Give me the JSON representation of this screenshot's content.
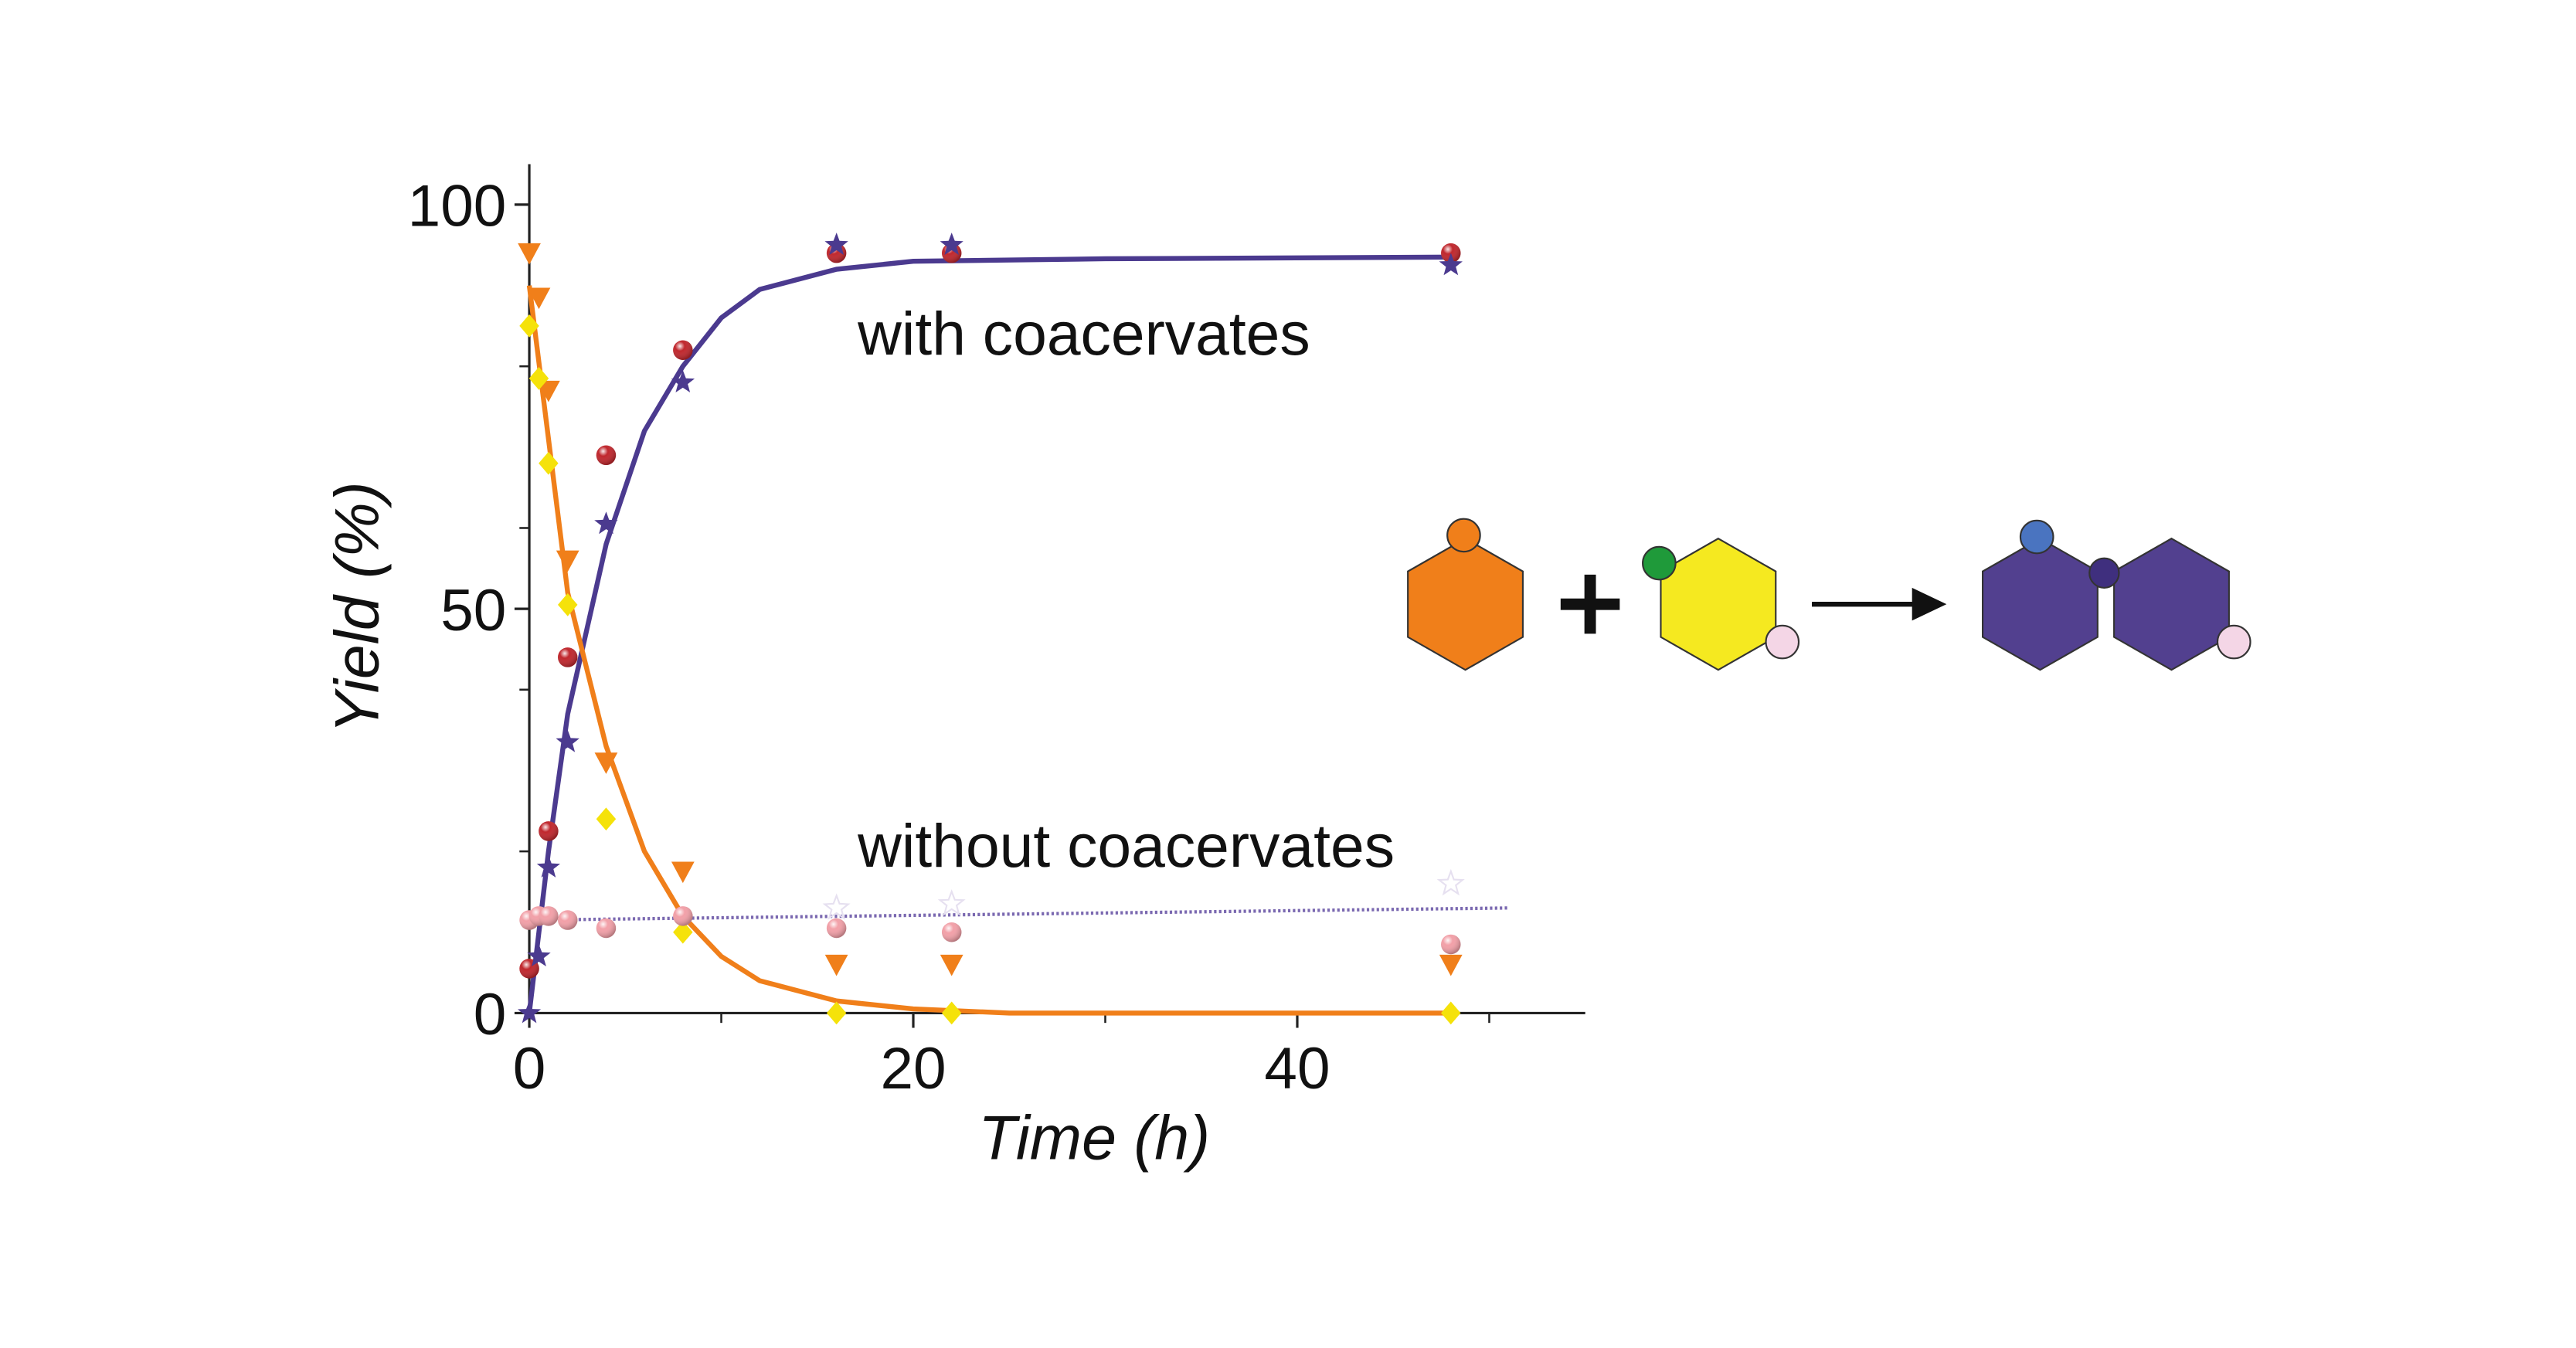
{
  "chart_data": {
    "type": "scatter",
    "xlabel": "Time (h)",
    "ylabel": "Yield (%)",
    "annotations": [
      "with coacervates",
      "without coacervates"
    ],
    "xlim": [
      0,
      55
    ],
    "ylim": [
      0,
      105
    ],
    "xticks": [
      0,
      20,
      40
    ],
    "xticks_minor": [
      10,
      30,
      50
    ],
    "yticks": [
      0,
      50,
      100
    ],
    "yticks_minor": [
      20,
      40,
      60,
      80
    ],
    "series": [
      {
        "color": "#c0272d",
        "marker": "sphere",
        "x": [
          0,
          1,
          2,
          4,
          8,
          16,
          22,
          48
        ],
        "values": [
          5.5,
          22.5,
          44,
          69,
          82,
          94,
          94,
          94
        ]
      },
      {
        "color": "#4b3a8f",
        "marker": "star",
        "x": [
          0,
          0.5,
          1,
          2,
          4,
          8,
          16,
          22,
          48
        ],
        "values": [
          0,
          7,
          18,
          33.5,
          60.5,
          78,
          95,
          95,
          92.5
        ]
      },
      {
        "color": "#f07f1a",
        "marker": "triangle",
        "x": [
          0,
          0.5,
          1,
          2,
          4,
          8,
          16,
          22,
          48
        ],
        "values": [
          94,
          88.5,
          77,
          56,
          31,
          17.5,
          6,
          6,
          6
        ]
      },
      {
        "color": "#f5e20a",
        "marker": "diamond",
        "x": [
          0,
          0.5,
          1,
          2,
          4,
          8,
          16,
          22,
          48
        ],
        "values": [
          85,
          78.5,
          68,
          50.5,
          24,
          10,
          0,
          0,
          0
        ]
      },
      {
        "color": "#f2a0a8",
        "marker": "sphere",
        "x": [
          0,
          0.5,
          1,
          2,
          4,
          8,
          16,
          22,
          48
        ],
        "values": [
          11.5,
          12,
          12,
          11.5,
          10.5,
          12,
          10.5,
          10,
          8.5
        ]
      },
      {
        "color": "#e6e0f0",
        "marker": "hollow-star",
        "x": [
          16,
          22,
          48
        ],
        "values": [
          13,
          13.5,
          16
        ]
      },
      {
        "color": "#4b3a8f",
        "marker": "line",
        "x": [
          0,
          1,
          2,
          4,
          6,
          8,
          10,
          12,
          16,
          20,
          30,
          48
        ],
        "values": [
          0,
          20,
          37,
          58,
          72,
          80,
          86,
          89.5,
          92,
          93,
          93.3,
          93.5
        ]
      },
      {
        "color": "#f07f1a",
        "marker": "line",
        "x": [
          0,
          1,
          2,
          4,
          6,
          8,
          10,
          12,
          16,
          20,
          25,
          48
        ],
        "values": [
          90,
          71,
          52,
          33,
          20,
          12,
          7,
          4,
          1.5,
          0.5,
          0,
          0
        ]
      },
      {
        "color": "#7a68b0",
        "marker": "dotted-line",
        "x": [
          0,
          51
        ],
        "values": [
          11.5,
          13
        ]
      }
    ]
  }
}
